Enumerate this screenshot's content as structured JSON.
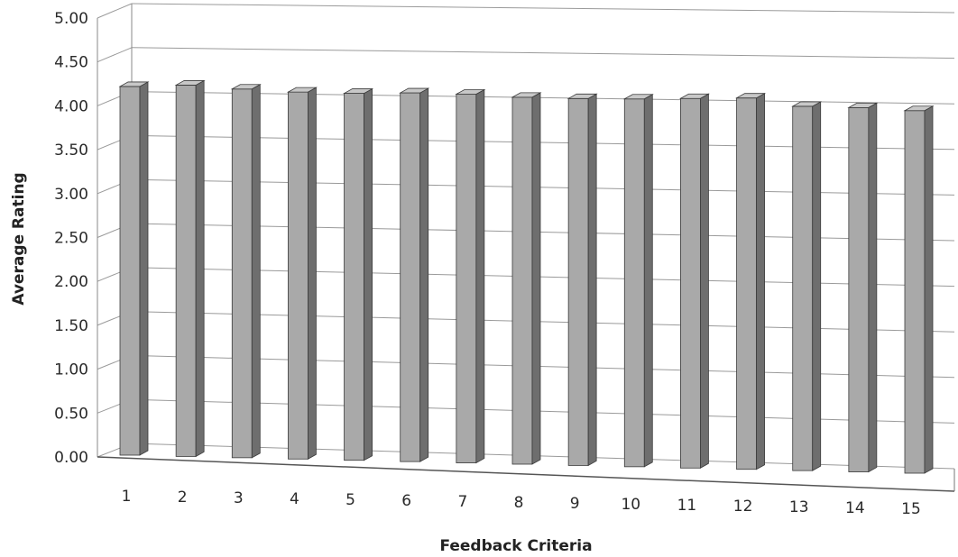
{
  "chart_data": {
    "type": "bar",
    "title": "",
    "xlabel": "Feedback Criteria",
    "ylabel": "Average Rating",
    "categories": [
      "1",
      "2",
      "3",
      "4",
      "5",
      "6",
      "7",
      "8",
      "9",
      "10",
      "11",
      "12",
      "13",
      "14",
      "15"
    ],
    "values": [
      4.2,
      4.23,
      4.2,
      4.18,
      4.18,
      4.2,
      4.2,
      4.18,
      4.18,
      4.19,
      4.21,
      4.23,
      4.15,
      4.15,
      4.13
    ],
    "ylim": [
      0,
      5
    ],
    "yticks": [
      "0.00",
      "0.50",
      "1.00",
      "1.50",
      "2.00",
      "2.50",
      "3.00",
      "3.50",
      "4.00",
      "4.50",
      "5.00"
    ],
    "grid": true,
    "legend": "none",
    "style": "3d-column",
    "colors": {
      "bar_front": "#a9a9a9",
      "bar_side": "#6e6e6e",
      "bar_top": "#c8c8c8",
      "gridline": "#9a9a9a"
    }
  }
}
